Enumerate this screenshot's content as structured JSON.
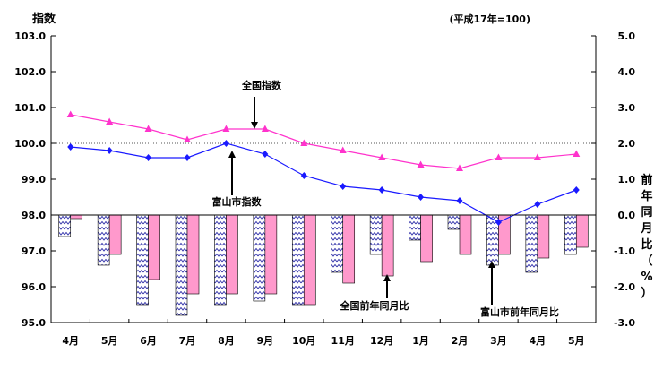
{
  "chart_data": {
    "type": "bar+line",
    "ylabel_left": "指数",
    "ylabel_right": [
      "前",
      "年",
      "同",
      "月",
      "比",
      "（",
      "%",
      "）"
    ],
    "base_note": "(平成17年=100)",
    "categories": [
      "4月",
      "5月",
      "6月",
      "7月",
      "8月",
      "9月",
      "10月",
      "11月",
      "12月",
      "1月",
      "2月",
      "3月",
      "4月",
      "5月"
    ],
    "ylim_left": [
      95.0,
      103.0
    ],
    "ylim_right": [
      -3.0,
      5.0
    ],
    "yticks_left": [
      "103.0",
      "102.0",
      "101.0",
      "100.0",
      "99.0",
      "98.0",
      "97.0",
      "96.0",
      "95.0"
    ],
    "yticks_right": [
      "5.0",
      "4.0",
      "3.0",
      "2.0",
      "1.0",
      "0.0",
      "-1.0",
      "-2.0",
      "-3.0"
    ],
    "reference_line": 100.0,
    "series": [
      {
        "name": "全国指数",
        "type": "line",
        "axis": "left",
        "color": "#ff33cc",
        "marker": "triangle",
        "values": [
          100.8,
          100.6,
          100.4,
          100.1,
          100.4,
          100.4,
          100.0,
          99.8,
          99.6,
          99.4,
          99.3,
          99.6,
          99.6,
          99.7
        ]
      },
      {
        "name": "富山市指数",
        "type": "line",
        "axis": "left",
        "color": "#1a1aff",
        "marker": "diamond",
        "values": [
          99.9,
          99.8,
          99.6,
          99.6,
          100.0,
          99.7,
          99.1,
          98.8,
          98.7,
          98.5,
          98.4,
          97.8,
          98.3,
          98.7
        ]
      },
      {
        "name": "富山市前年同月比",
        "type": "bar",
        "axis": "right",
        "color": "#3333aa",
        "pattern": "zigzag",
        "values": [
          -0.6,
          -1.4,
          -2.5,
          -2.8,
          -2.5,
          -2.4,
          -2.5,
          -1.6,
          -1.1,
          -0.7,
          -0.4,
          -1.4,
          -1.6,
          -1.1
        ]
      },
      {
        "name": "全国前年同月比",
        "type": "bar",
        "axis": "right",
        "color": "#ff99cc",
        "pattern": "solid",
        "values": [
          -0.1,
          -1.1,
          -1.8,
          -2.2,
          -2.2,
          -2.2,
          -2.5,
          -1.9,
          -1.7,
          -1.3,
          -1.1,
          -1.1,
          -1.2,
          -0.9
        ]
      }
    ],
    "annotations": [
      {
        "text": "全国指数",
        "target_series": "全国指数",
        "target_index": 5,
        "direction": "down"
      },
      {
        "text": "富山市指数",
        "target_series": "富山市指数",
        "target_index": 4,
        "direction": "up"
      },
      {
        "text": "全国前年同月比",
        "target_series": "全国前年同月比",
        "target_index": 8,
        "direction": "up"
      },
      {
        "text": "富山市前年同月比",
        "target_series": "富山市前年同月比",
        "target_index": 11,
        "direction": "up"
      }
    ],
    "colors": {
      "axis": "#000000",
      "dotted_line": "#555555"
    }
  }
}
